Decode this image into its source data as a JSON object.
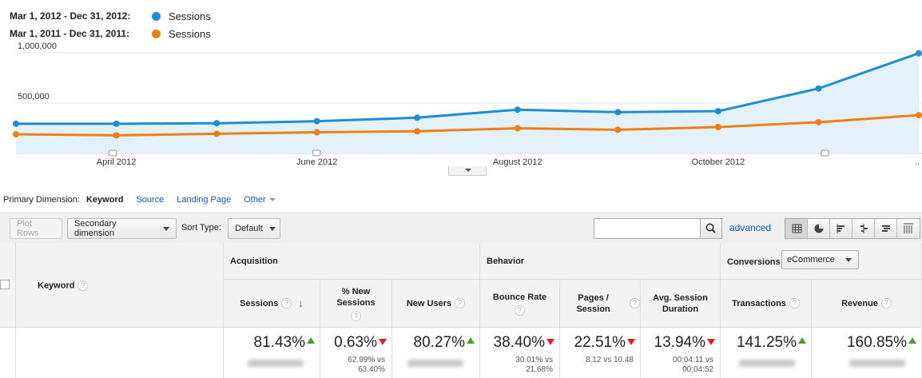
{
  "legend": [
    {
      "range": "Mar 1, 2012 - Dec 31, 2012:",
      "label": "Sessions",
      "color": "#1f8dd6"
    },
    {
      "range": "Mar 1, 2011 - Dec 31, 2011:",
      "label": "Sessions",
      "color": "#ee7f14"
    }
  ],
  "chart_data": {
    "type": "line",
    "y_ticks": [
      {
        "value": 1000000,
        "label": "1,000,000"
      },
      {
        "value": 500000,
        "label": "500,000"
      }
    ],
    "ylim": [
      0,
      1000000
    ],
    "x_labels": [
      "April 2012",
      "June 2012",
      "August 2012",
      "October 2012"
    ],
    "x_label_months": [
      1,
      3,
      5,
      7
    ],
    "x_last_label": "..",
    "area_fill": "#e3f1fb",
    "series": [
      {
        "name": "Sessions",
        "period": "Mar 1, 2012 - Dec 31, 2012",
        "color": "#1f8dd6",
        "values": [
          295000,
          295000,
          300000,
          320000,
          355000,
          435000,
          410000,
          420000,
          645000,
          995000
        ]
      },
      {
        "name": "Sessions",
        "period": "Mar 1, 2011 - Dec 31, 2011",
        "color": "#ee7f14",
        "values": [
          190000,
          180000,
          195000,
          210000,
          220000,
          250000,
          235000,
          262000,
          310000,
          380000
        ]
      }
    ]
  },
  "primary_dimension": {
    "label": "Primary Dimension:",
    "active": "Keyword",
    "options": [
      "Source",
      "Landing Page"
    ],
    "other": "Other"
  },
  "toolbar": {
    "plot_rows": "Plot Rows",
    "secondary_dimension": "Secondary dimension",
    "sort_type_label": "Sort Type:",
    "sort_type_value": "Default",
    "search_value": "",
    "advanced": "advanced"
  },
  "table": {
    "keyword_header": "Keyword",
    "groups": {
      "acquisition": "Acquisition",
      "behavior": "Behavior",
      "conversions": "Conversions",
      "conversions_select": "eCommerce"
    },
    "columns": [
      {
        "label": "Sessions",
        "pct": "81.43%",
        "trend": "up",
        "compare": ""
      },
      {
        "label": "% New Sessions",
        "pct": "0.63%",
        "trend": "down",
        "compare": "62.99% vs 63.40%"
      },
      {
        "label": "New Users",
        "pct": "80.27%",
        "trend": "up",
        "compare": ""
      },
      {
        "label": "Bounce Rate",
        "pct": "38.40%",
        "trend": "down",
        "compare": "30.01% vs 21.68%"
      },
      {
        "label": "Pages / Session",
        "pct": "22.51%",
        "trend": "down",
        "compare": "8.12 vs 10.48"
      },
      {
        "label": "Avg. Session Duration",
        "pct": "13.94%",
        "trend": "down",
        "compare": "00:04:11 vs 00:04:52"
      },
      {
        "label": "Transactions",
        "pct": "141.25%",
        "trend": "up",
        "compare": ""
      },
      {
        "label": "Revenue",
        "pct": "160.85%",
        "trend": "up",
        "compare": ""
      }
    ],
    "compare_parts": [
      null,
      [
        "62.99% vs",
        "63.40%"
      ],
      null,
      [
        "30.01% vs",
        "21.68%"
      ],
      [
        "8.12 vs 10.48"
      ],
      [
        "00:04:11 vs",
        "00:04:52"
      ],
      null,
      null
    ]
  }
}
